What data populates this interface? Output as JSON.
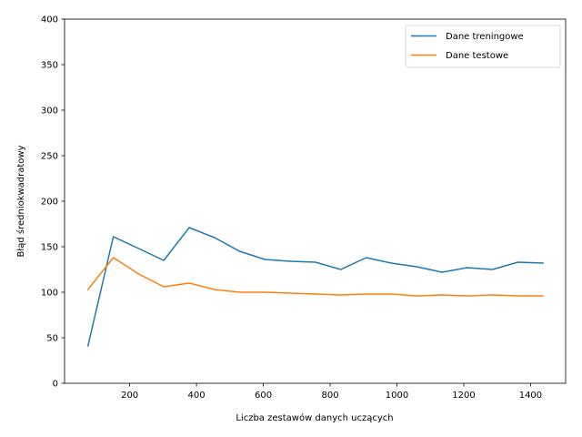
{
  "chart_data": {
    "type": "line",
    "title": "",
    "xlabel": "Liczba zestawów danych uczących",
    "ylabel": "Błąd średniokwadratowy",
    "xlim": [
      5,
      1505
    ],
    "ylim": [
      0,
      400
    ],
    "xticks": [
      200,
      400,
      600,
      800,
      1000,
      1200,
      1400
    ],
    "yticks": [
      0,
      50,
      100,
      150,
      200,
      250,
      300,
      350,
      400
    ],
    "grid": false,
    "legend_position": "top-right",
    "x": [
      75,
      151,
      227,
      302,
      378,
      454,
      529,
      605,
      681,
      756,
      832,
      908,
      983,
      1059,
      1135,
      1210,
      1286,
      1362,
      1437
    ],
    "series": [
      {
        "name": "Dane treningowe",
        "color": "#1f77b4",
        "values": [
          41,
          161,
          148,
          135,
          171,
          160,
          145,
          136,
          134,
          133,
          125,
          138,
          132,
          128,
          122,
          127,
          125,
          133,
          132
        ]
      },
      {
        "name": "Dane testowe",
        "color": "#ff7f0e",
        "values": [
          103,
          138,
          120,
          106,
          110,
          103,
          100,
          100,
          99,
          98,
          97,
          98,
          98,
          96,
          97,
          96,
          97,
          96,
          96
        ]
      }
    ]
  }
}
